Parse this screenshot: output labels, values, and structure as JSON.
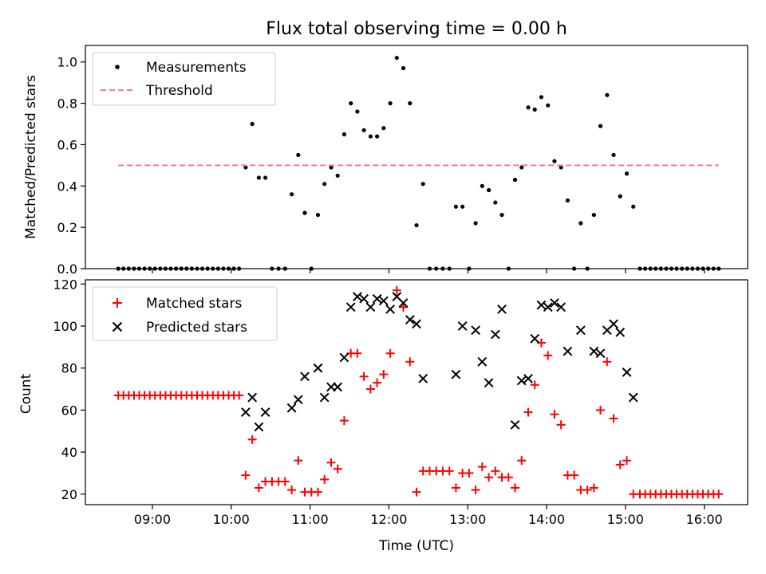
{
  "figure": {
    "title": "Flux total observing time = 0.00 h",
    "xlabel": "Time (UTC)",
    "x_ticks": [
      "09:00",
      "10:00",
      "11:00",
      "12:00",
      "13:00",
      "14:00",
      "15:00",
      "16:00"
    ],
    "x_tick_hours": [
      9,
      10,
      11,
      12,
      13,
      14,
      15,
      16
    ],
    "x_range_hours": [
      8.15,
      16.55
    ]
  },
  "chart_data": [
    {
      "type": "scatter",
      "ylabel": "Matched/Predicted stars",
      "ylim": [
        0,
        1.08
      ],
      "y_ticks": [
        "0.0",
        "0.2",
        "0.4",
        "0.6",
        "0.8",
        "1.0"
      ],
      "y_tick_values": [
        0,
        0.2,
        0.4,
        0.6,
        0.8,
        1.0
      ],
      "legend": {
        "position": "top-left",
        "entries": [
          "Measurements",
          "Threshold"
        ]
      },
      "series": [
        {
          "name": "Measurements",
          "color": "#000000",
          "marker": "dot",
          "x_hours": [
            8.567,
            8.633,
            8.7,
            8.767,
            8.833,
            8.9,
            8.967,
            9.033,
            9.1,
            9.167,
            9.233,
            9.3,
            9.367,
            9.433,
            9.5,
            9.567,
            9.633,
            9.7,
            9.767,
            9.833,
            9.9,
            9.967,
            10.033,
            10.1,
            10.183,
            10.267,
            10.35,
            10.433,
            10.517,
            10.6,
            10.683,
            10.767,
            10.85,
            10.933,
            11.017,
            11.1,
            11.183,
            11.267,
            11.35,
            11.433,
            11.517,
            11.6,
            11.683,
            11.767,
            11.85,
            11.933,
            12.017,
            12.1,
            12.183,
            12.267,
            12.35,
            12.433,
            12.517,
            12.6,
            12.683,
            12.767,
            12.85,
            12.933,
            13.017,
            13.1,
            13.183,
            13.267,
            13.35,
            13.433,
            13.517,
            13.6,
            13.683,
            13.767,
            13.85,
            13.933,
            14.017,
            14.1,
            14.183,
            14.267,
            14.35,
            14.433,
            14.517,
            14.6,
            14.683,
            14.767,
            14.85,
            14.933,
            15.017,
            15.1,
            15.183,
            15.25,
            15.317,
            15.383,
            15.45,
            15.517,
            15.583,
            15.65,
            15.717,
            15.783,
            15.85,
            15.917,
            15.983,
            16.05,
            16.117,
            16.183
          ],
          "y": [
            0,
            0,
            0,
            0,
            0,
            0,
            0,
            0,
            0,
            0,
            0,
            0,
            0,
            0,
            0,
            0,
            0,
            0,
            0,
            0,
            0,
            0,
            0,
            0,
            0.49,
            0.7,
            0.44,
            0.44,
            0,
            0,
            0,
            0.36,
            0.55,
            0.27,
            0,
            0.26,
            0.41,
            0.49,
            0.45,
            0.65,
            0.8,
            0.76,
            0.67,
            0.64,
            0.64,
            0.68,
            0.8,
            1.02,
            0.97,
            0.8,
            0.21,
            0.41,
            0,
            0,
            0,
            0,
            0.3,
            0.3,
            0,
            0.22,
            0.4,
            0.38,
            0.32,
            0.26,
            0,
            0.43,
            0.49,
            0.78,
            0.77,
            0.83,
            0.79,
            0.52,
            0.49,
            0.33,
            0,
            0.22,
            0,
            0.26,
            0.69,
            0.84,
            0.55,
            0.35,
            0.46,
            0.3,
            0,
            0,
            0,
            0,
            0,
            0,
            0,
            0,
            0,
            0,
            0,
            0,
            0,
            0,
            0,
            0
          ]
        },
        {
          "name": "Threshold",
          "color": "#f08080",
          "style": "dashed",
          "x_hours": [
            8.567,
            16.183
          ],
          "y": [
            0.5,
            0.5
          ]
        }
      ]
    },
    {
      "type": "scatter",
      "ylabel": "Count",
      "ylim": [
        15,
        122
      ],
      "y_ticks": [
        "20",
        "40",
        "60",
        "80",
        "100",
        "120"
      ],
      "y_tick_values": [
        20,
        40,
        60,
        80,
        100,
        120
      ],
      "legend": {
        "position": "top-left",
        "entries": [
          "Matched stars",
          "Predicted stars"
        ]
      },
      "series": [
        {
          "name": "Matched stars",
          "color": "#ff0000",
          "marker": "plus",
          "x_hours": [
            8.567,
            8.633,
            8.7,
            8.767,
            8.833,
            8.9,
            8.967,
            9.033,
            9.1,
            9.167,
            9.233,
            9.3,
            9.367,
            9.433,
            9.5,
            9.567,
            9.633,
            9.7,
            9.767,
            9.833,
            9.9,
            9.967,
            10.033,
            10.1,
            10.183,
            10.267,
            10.35,
            10.433,
            10.517,
            10.6,
            10.683,
            10.767,
            10.85,
            10.933,
            11.017,
            11.1,
            11.183,
            11.267,
            11.35,
            11.433,
            11.517,
            11.6,
            11.683,
            11.767,
            11.85,
            11.933,
            12.017,
            12.1,
            12.183,
            12.267,
            12.35,
            12.433,
            12.517,
            12.6,
            12.683,
            12.767,
            12.85,
            12.933,
            13.017,
            13.1,
            13.183,
            13.267,
            13.35,
            13.433,
            13.517,
            13.6,
            13.683,
            13.767,
            13.85,
            13.933,
            14.017,
            14.1,
            14.183,
            14.267,
            14.35,
            14.433,
            14.517,
            14.6,
            14.683,
            14.767,
            14.85,
            14.933,
            15.017,
            15.1,
            15.183,
            15.25,
            15.317,
            15.383,
            15.45,
            15.517,
            15.583,
            15.65,
            15.717,
            15.783,
            15.85,
            15.917,
            15.983,
            16.05,
            16.117,
            16.183
          ],
          "y": [
            67,
            67,
            67,
            67,
            67,
            67,
            67,
            67,
            67,
            67,
            67,
            67,
            67,
            67,
            67,
            67,
            67,
            67,
            67,
            67,
            67,
            67,
            67,
            67,
            29,
            46,
            23,
            26,
            26,
            26,
            26,
            22,
            36,
            21,
            21,
            21,
            27,
            35,
            32,
            55,
            87,
            87,
            76,
            70,
            73,
            77,
            87,
            117,
            109,
            83,
            21,
            31,
            31,
            31,
            31,
            31,
            23,
            30,
            30,
            22,
            33,
            28,
            31,
            28,
            28,
            23,
            36,
            59,
            72,
            92,
            86,
            58,
            53,
            29,
            29,
            22,
            22,
            23,
            60,
            83,
            56,
            34,
            36,
            20,
            20,
            20,
            20,
            20,
            20,
            20,
            20,
            20,
            20,
            20,
            20,
            20,
            20,
            20,
            20,
            20
          ]
        },
        {
          "name": "Predicted stars",
          "color": "#000000",
          "marker": "cross",
          "x_hours": [
            10.183,
            10.267,
            10.35,
            10.433,
            10.767,
            10.85,
            10.933,
            11.1,
            11.183,
            11.267,
            11.35,
            11.433,
            11.517,
            11.6,
            11.683,
            11.767,
            11.85,
            11.933,
            12.017,
            12.1,
            12.183,
            12.267,
            12.35,
            12.433,
            12.85,
            12.933,
            13.1,
            13.183,
            13.267,
            13.35,
            13.433,
            13.6,
            13.683,
            13.767,
            13.85,
            13.933,
            14.017,
            14.1,
            14.183,
            14.267,
            14.433,
            14.6,
            14.683,
            14.767,
            14.85,
            14.933,
            15.017,
            15.1
          ],
          "y": [
            59,
            66,
            52,
            59,
            61,
            65,
            76,
            80,
            66,
            71,
            71,
            85,
            109,
            114,
            113,
            109,
            113,
            112,
            108,
            114,
            111,
            103,
            101,
            75,
            77,
            100,
            98,
            83,
            73,
            96,
            108,
            53,
            74,
            75,
            94,
            110,
            109,
            111,
            109,
            88,
            98,
            88,
            87,
            98,
            101,
            97,
            78,
            66
          ]
        }
      ]
    }
  ]
}
